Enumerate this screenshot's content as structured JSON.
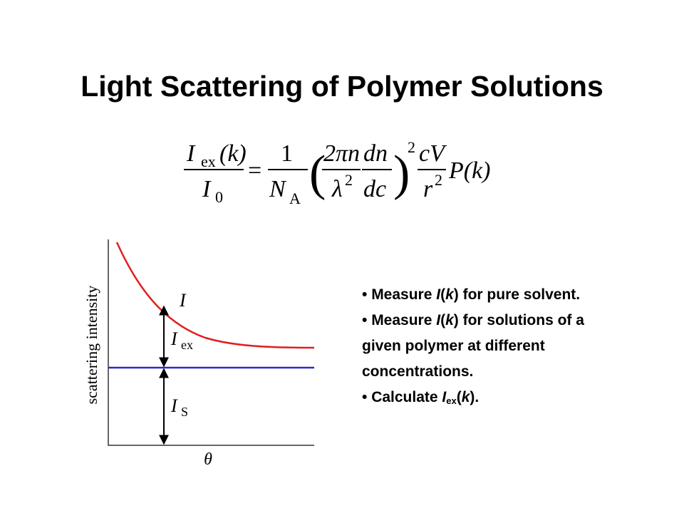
{
  "slide": {
    "title": "Light Scattering of Polymer Solutions"
  },
  "formula": {
    "lhs_num": "I",
    "lhs_num_sub": "ex",
    "lhs_num_arg": "(k)",
    "lhs_den": "I",
    "lhs_den_sub": "0",
    "equals": "=",
    "frac1_num": "1",
    "frac1_den": "N",
    "frac1_den_sub": "A",
    "paren_open": "(",
    "frac2_num": "2πn",
    "frac2_den": "λ",
    "frac2_den_sup": "2",
    "frac3_num": "dn",
    "frac3_den": "dc",
    "paren_close": ")",
    "paren_sup": "2",
    "frac4_num": "cV",
    "frac4_den": "r",
    "frac4_den_sup": "2",
    "tail": "P(k)"
  },
  "diagram": {
    "ylabel": "scattering intensity",
    "xlabel": "θ",
    "label_total": "I",
    "label_excess": "I",
    "label_excess_sub": "ex",
    "label_solvent": "I",
    "label_solvent_sub": "S",
    "colors": {
      "total_curve": "#e02020",
      "solvent_line": "#2a2acc",
      "axes": "#666666"
    }
  },
  "bullets": {
    "b1": {
      "pre": "Measure ",
      "var": "I",
      "mid": "(",
      "arg": "k",
      "post": ") for pure solvent."
    },
    "b2": {
      "pre": "Measure ",
      "var": "I",
      "mid": "(",
      "arg": "k",
      "post": ") for solutions of a"
    },
    "b2_line2": "given polymer at different",
    "b2_line3": "concentrations.",
    "b3": {
      "pre": "Calculate ",
      "var": "I",
      "sub": "ex",
      "mid": "(",
      "arg": "k",
      "post": ")."
    }
  }
}
